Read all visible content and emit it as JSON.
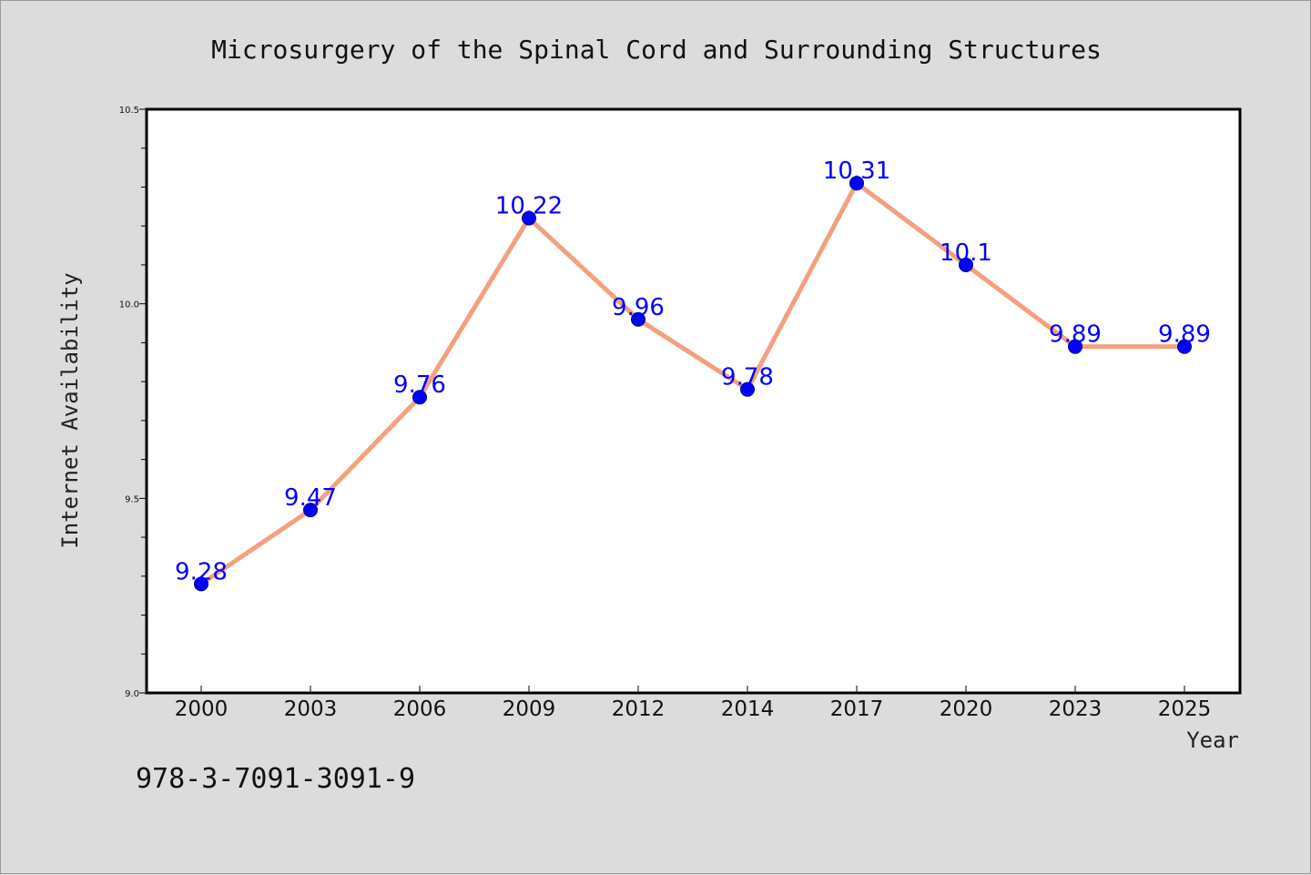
{
  "chart_data": {
    "type": "line",
    "title": "Microsurgery of the Spinal Cord and Surrounding Structures",
    "xlabel": "Year",
    "ylabel": "Internet Availability",
    "categories": [
      "2000",
      "2003",
      "2006",
      "2009",
      "2012",
      "2014",
      "2017",
      "2020",
      "2023",
      "2025"
    ],
    "values": [
      9.28,
      9.47,
      9.76,
      10.22,
      9.96,
      9.78,
      10.31,
      10.1,
      9.89,
      9.89
    ],
    "data_labels": [
      "9.28",
      "9.47",
      "9.76",
      "10.22",
      "9.96",
      "9.78",
      "10.31",
      "10.1",
      "9.89",
      "9.89"
    ],
    "ylim": [
      9.0,
      10.5
    ],
    "yticks": [
      "9.0",
      "9.5",
      "10.0",
      "10.5"
    ],
    "grid": false,
    "legend": "none",
    "colors": {
      "line": "#f4a07f",
      "marker": "#0000ff",
      "marker_edge": "#00008b",
      "data_label": "#0000ff",
      "plot_background": "#ffffff",
      "figure_background": "#dcdcdc"
    }
  },
  "footer": {
    "code": "978-3-7091-3091-9"
  }
}
